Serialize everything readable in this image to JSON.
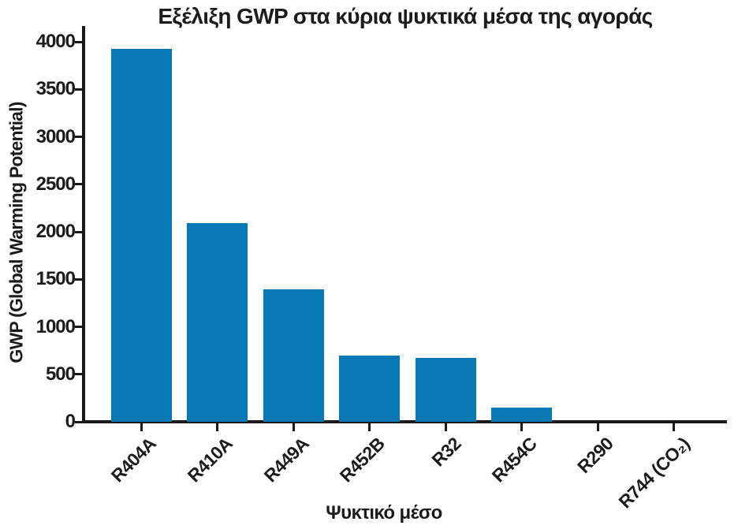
{
  "chart_data": {
    "type": "bar",
    "title": "Εξέλιξη GWP στα κύρια ψυκτικά μέσα της αγοράς",
    "xlabel": "Ψυκτικό μέσο",
    "ylabel": "GWP (Global Warming Potential)",
    "categories": [
      "R404A",
      "R410A",
      "R449A",
      "R452B",
      "R32",
      "R454C",
      "R290",
      "R744 (CO₂)"
    ],
    "values": [
      3922,
      2088,
      1397,
      698,
      675,
      148,
      3,
      1
    ],
    "yticks": [
      0,
      500,
      1000,
      1500,
      2000,
      2500,
      3000,
      3500,
      4000
    ],
    "ylim": [
      0,
      4166
    ],
    "grid": false,
    "legend": "none",
    "bar_color": "#0778B4",
    "axis_color": "#1A1A1A",
    "text_color": "#1B1B1B"
  }
}
